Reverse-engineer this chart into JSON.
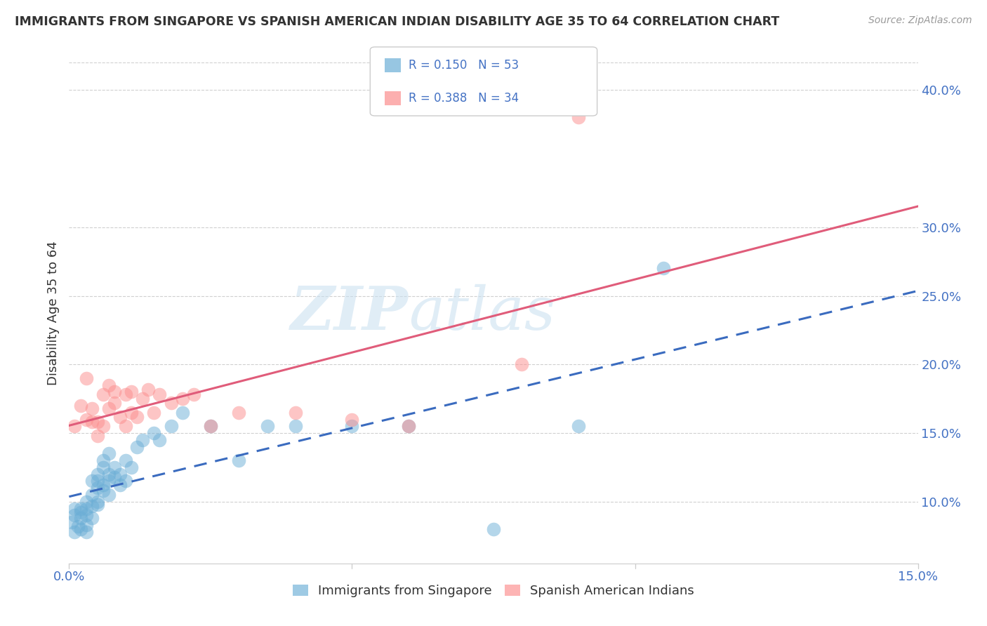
{
  "title": "IMMIGRANTS FROM SINGAPORE VS SPANISH AMERICAN INDIAN DISABILITY AGE 35 TO 64 CORRELATION CHART",
  "source": "Source: ZipAtlas.com",
  "ylabel": "Disability Age 35 to 64",
  "series1_name": "Immigrants from Singapore",
  "series2_name": "Spanish American Indians",
  "series1_color": "#6baed6",
  "series2_color": "#fc8d8d",
  "series1_line_color": "#3a6bbf",
  "series2_line_color": "#e05c7a",
  "series1_R": 0.15,
  "series1_N": 53,
  "series2_R": 0.388,
  "series2_N": 34,
  "xlim": [
    0.0,
    0.15
  ],
  "ylim": [
    0.055,
    0.42
  ],
  "xtick_vals": [
    0.0,
    0.15
  ],
  "yticks_right": [
    0.1,
    0.15,
    0.2,
    0.25,
    0.3,
    0.4
  ],
  "watermark_zip": "ZIP",
  "watermark_atlas": "atlas",
  "background_color": "#ffffff",
  "grid_color": "#d0d0d0",
  "series1_x": [
    0.0005,
    0.001,
    0.001,
    0.001,
    0.0015,
    0.002,
    0.002,
    0.002,
    0.002,
    0.003,
    0.003,
    0.003,
    0.003,
    0.003,
    0.004,
    0.004,
    0.004,
    0.004,
    0.005,
    0.005,
    0.005,
    0.005,
    0.005,
    0.006,
    0.006,
    0.006,
    0.006,
    0.007,
    0.007,
    0.007,
    0.007,
    0.008,
    0.008,
    0.009,
    0.009,
    0.01,
    0.01,
    0.011,
    0.012,
    0.013,
    0.015,
    0.016,
    0.018,
    0.02,
    0.025,
    0.03,
    0.035,
    0.04,
    0.05,
    0.06,
    0.075,
    0.09,
    0.105
  ],
  "series1_y": [
    0.085,
    0.09,
    0.095,
    0.078,
    0.082,
    0.088,
    0.095,
    0.08,
    0.092,
    0.083,
    0.09,
    0.095,
    0.078,
    0.1,
    0.097,
    0.105,
    0.088,
    0.115,
    0.1,
    0.098,
    0.115,
    0.12,
    0.11,
    0.108,
    0.125,
    0.112,
    0.13,
    0.115,
    0.12,
    0.105,
    0.135,
    0.118,
    0.125,
    0.112,
    0.12,
    0.13,
    0.115,
    0.125,
    0.14,
    0.145,
    0.15,
    0.145,
    0.155,
    0.165,
    0.155,
    0.13,
    0.155,
    0.155,
    0.155,
    0.155,
    0.08,
    0.155,
    0.27
  ],
  "series2_x": [
    0.001,
    0.002,
    0.003,
    0.003,
    0.004,
    0.004,
    0.005,
    0.005,
    0.006,
    0.006,
    0.007,
    0.007,
    0.008,
    0.008,
    0.009,
    0.01,
    0.01,
    0.011,
    0.011,
    0.012,
    0.013,
    0.014,
    0.015,
    0.016,
    0.018,
    0.02,
    0.022,
    0.025,
    0.03,
    0.04,
    0.05,
    0.06,
    0.08,
    0.09
  ],
  "series2_y": [
    0.155,
    0.17,
    0.16,
    0.19,
    0.158,
    0.168,
    0.148,
    0.158,
    0.155,
    0.178,
    0.168,
    0.185,
    0.172,
    0.18,
    0.162,
    0.155,
    0.178,
    0.165,
    0.18,
    0.162,
    0.175,
    0.182,
    0.165,
    0.178,
    0.172,
    0.175,
    0.178,
    0.155,
    0.165,
    0.165,
    0.16,
    0.155,
    0.2,
    0.38
  ]
}
